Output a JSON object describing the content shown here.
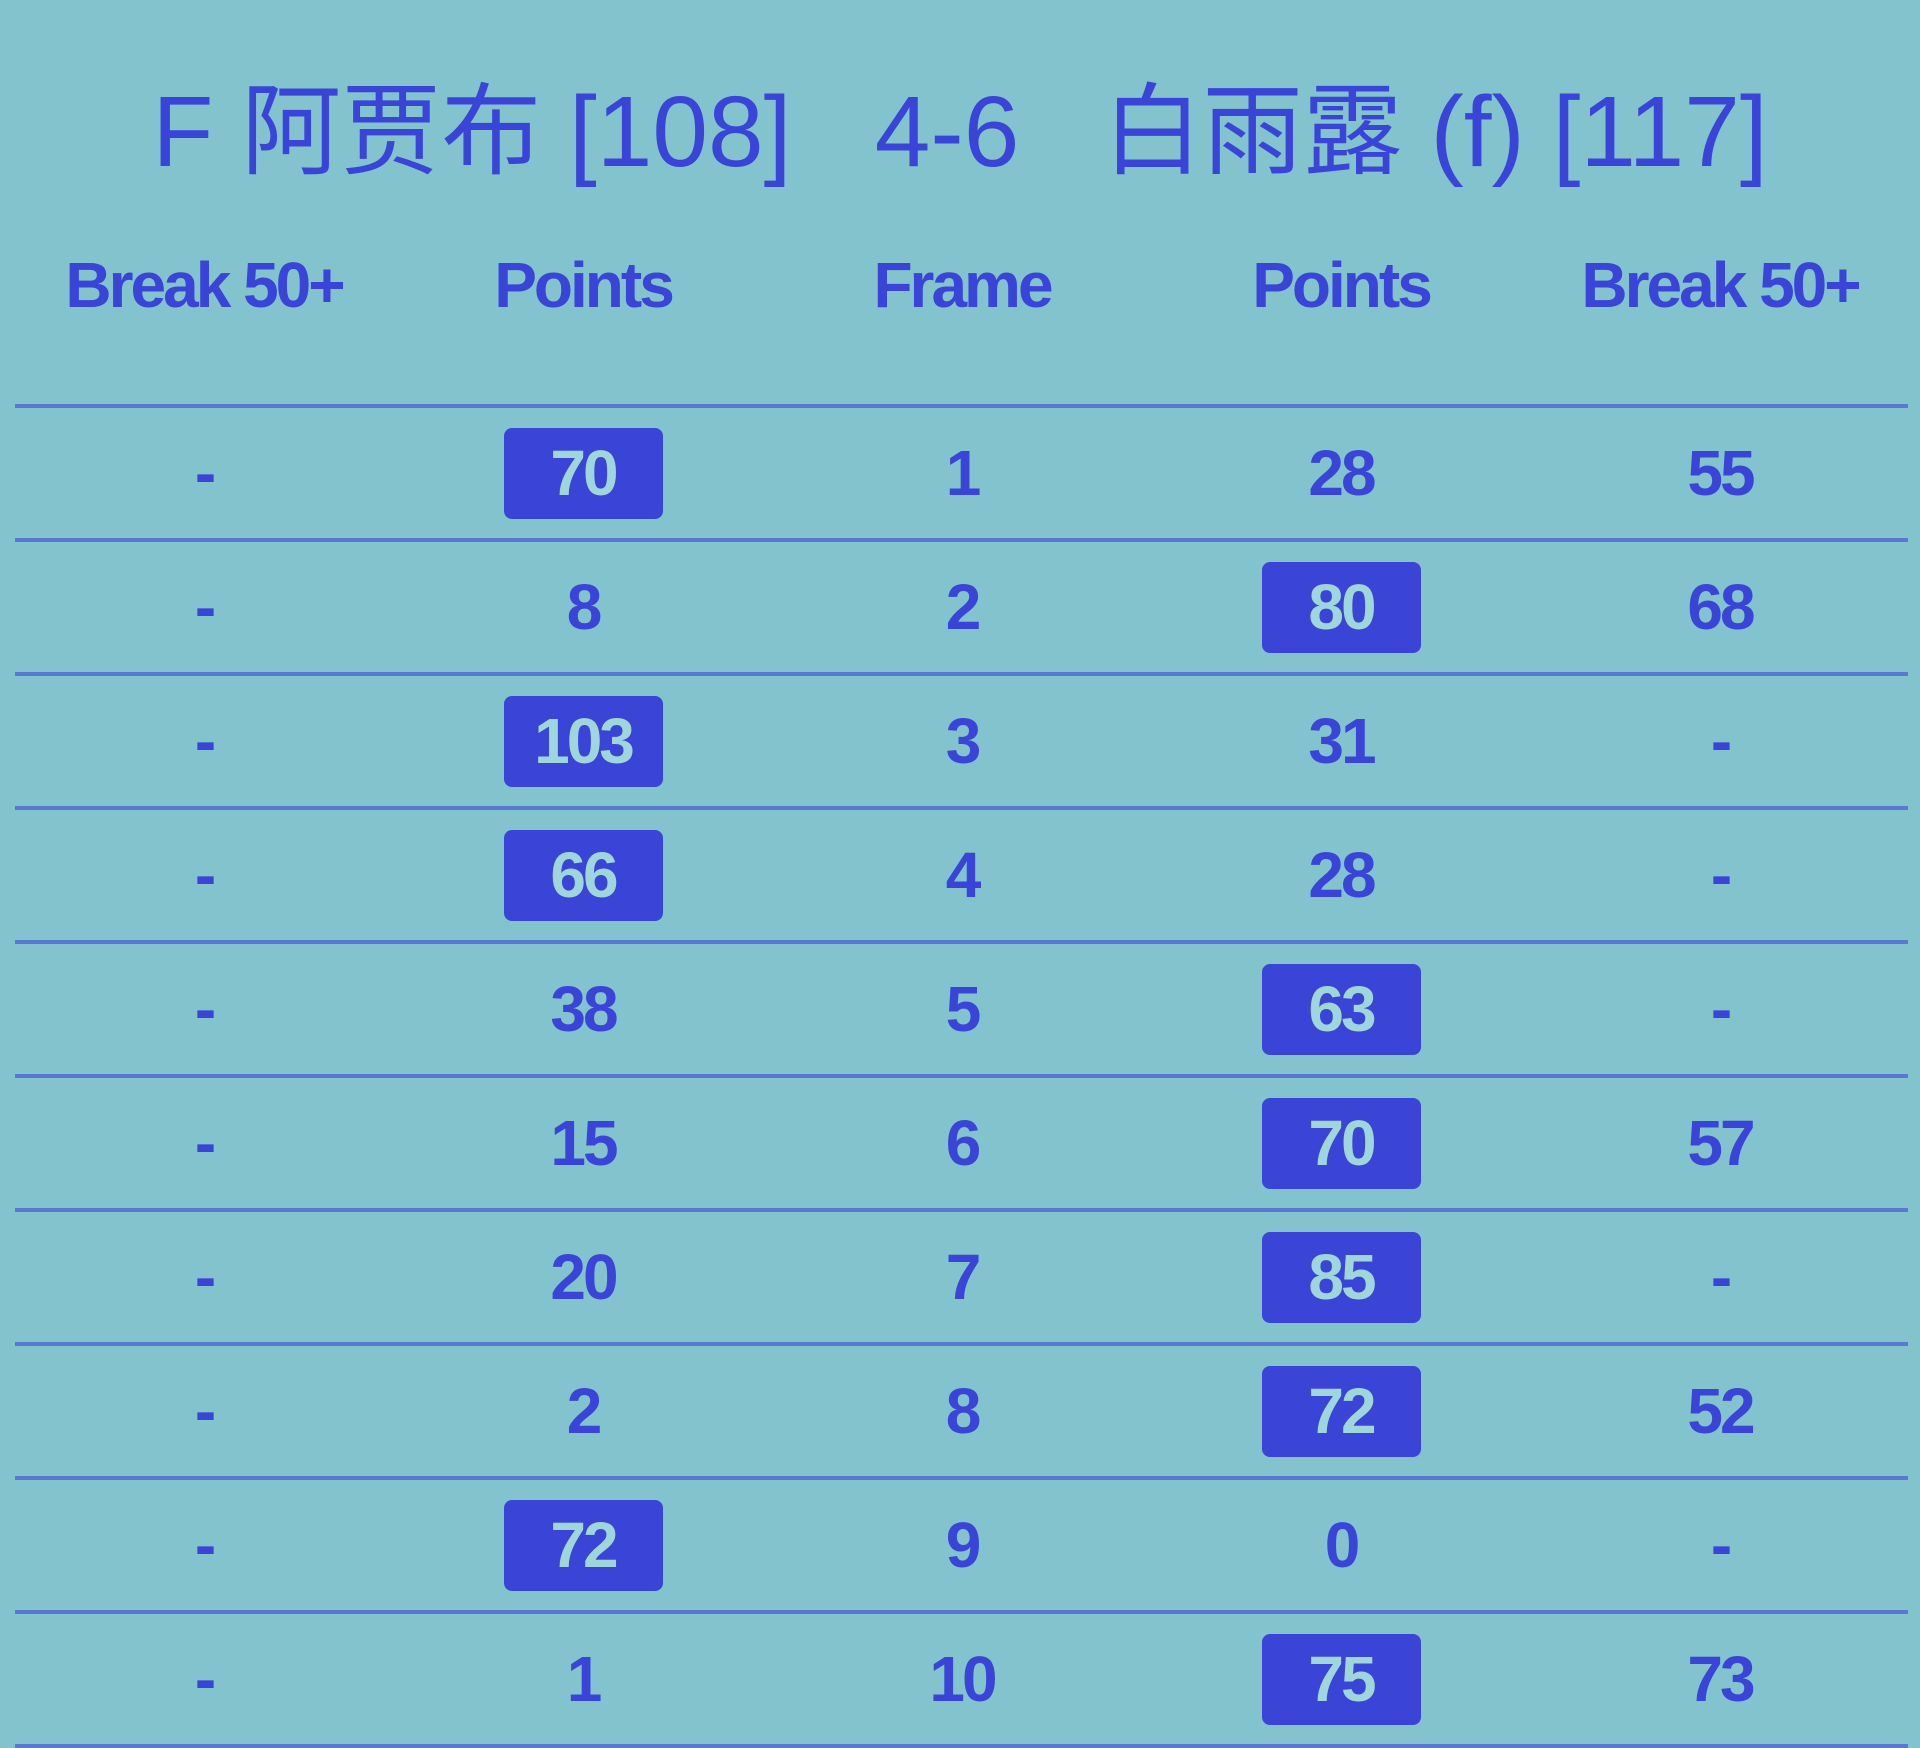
{
  "title": "F 阿贾布 [108]   4-6   白雨露 (f) [117]",
  "headers": [
    "Break 50+",
    "Points",
    "Frame",
    "Points",
    "Break 50+"
  ],
  "colors": {
    "background": "#82c3ce",
    "text": "#3a44d6",
    "highlight": "#3a44d6"
  },
  "rows": [
    {
      "p1_break": "-",
      "p1_points": "70",
      "frame": "1",
      "p2_points": "28",
      "p2_break": "55",
      "winner": "p1"
    },
    {
      "p1_break": "-",
      "p1_points": "8",
      "frame": "2",
      "p2_points": "80",
      "p2_break": "68",
      "winner": "p2"
    },
    {
      "p1_break": "-",
      "p1_points": "103",
      "frame": "3",
      "p2_points": "31",
      "p2_break": "-",
      "winner": "p1"
    },
    {
      "p1_break": "-",
      "p1_points": "66",
      "frame": "4",
      "p2_points": "28",
      "p2_break": "-",
      "winner": "p1"
    },
    {
      "p1_break": "-",
      "p1_points": "38",
      "frame": "5",
      "p2_points": "63",
      "p2_break": "-",
      "winner": "p2"
    },
    {
      "p1_break": "-",
      "p1_points": "15",
      "frame": "6",
      "p2_points": "70",
      "p2_break": "57",
      "winner": "p2"
    },
    {
      "p1_break": "-",
      "p1_points": "20",
      "frame": "7",
      "p2_points": "85",
      "p2_break": "-",
      "winner": "p2"
    },
    {
      "p1_break": "-",
      "p1_points": "2",
      "frame": "8",
      "p2_points": "72",
      "p2_break": "52",
      "winner": "p2"
    },
    {
      "p1_break": "-",
      "p1_points": "72",
      "frame": "9",
      "p2_points": "0",
      "p2_break": "-",
      "winner": "p1"
    },
    {
      "p1_break": "-",
      "p1_points": "1",
      "frame": "10",
      "p2_points": "75",
      "p2_break": "73",
      "winner": "p2"
    }
  ]
}
